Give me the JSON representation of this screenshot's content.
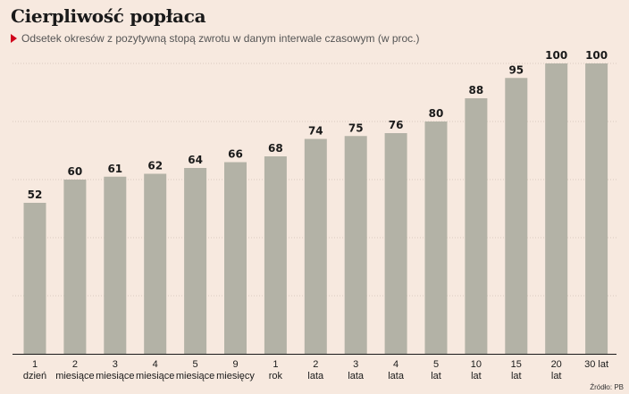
{
  "header": {
    "title": "Cierpliwość popłaca",
    "subtitle": "Odsetek okresów z pozytywną stopą zwrotu w danym interwale czasowym (w proc.)"
  },
  "footer": {
    "source": "Źródło: PB"
  },
  "colors": {
    "background": "#f7e9df",
    "bar": "#b3b2a6",
    "grid": "#d8c9bf",
    "accent": "#d0021b"
  },
  "chart_data": {
    "type": "bar",
    "categories": [
      [
        "1",
        "dzień"
      ],
      [
        "2",
        "miesiące"
      ],
      [
        "3",
        "miesiące"
      ],
      [
        "4",
        "miesiące"
      ],
      [
        "5",
        "miesiące"
      ],
      [
        "9",
        "miesięcy"
      ],
      [
        "1",
        "rok"
      ],
      [
        "2",
        "lata"
      ],
      [
        "3",
        "lata"
      ],
      [
        "4",
        "lata"
      ],
      [
        "5",
        "lat"
      ],
      [
        "10",
        "lat"
      ],
      [
        "15",
        "lat"
      ],
      [
        "20",
        "lat"
      ],
      [
        "30 lat",
        ""
      ]
    ],
    "values": [
      52,
      60,
      61,
      62,
      64,
      66,
      68,
      74,
      75,
      76,
      80,
      88,
      95,
      100,
      100
    ],
    "ylim": [
      0,
      100
    ],
    "grid": true,
    "data_labels": true
  }
}
